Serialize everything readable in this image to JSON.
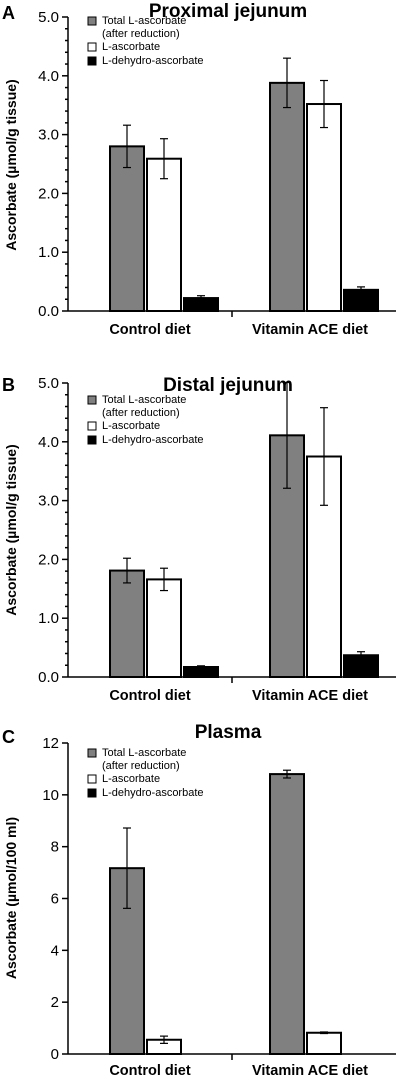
{
  "colors": {
    "total": "#808080",
    "l_ascorbate": "#ffffff",
    "l_dehydro": "#000000"
  },
  "chart_data": [
    {
      "type": "bar",
      "panel": "A",
      "title": "Proximal jejunum",
      "ylabel": "Ascorbate (µmol/g tissue)",
      "ylim": [
        0,
        5
      ],
      "yticks": [
        "0.0",
        "1.0",
        "2.0",
        "3.0",
        "4.0",
        "5.0"
      ],
      "minor_ticks": true,
      "categories": [
        "Control diet",
        "Vitamin ACE diet"
      ],
      "legend": [
        "Total L-ascorbate",
        "(after reduction)",
        "L-ascorbate",
        "L-dehydro-ascorbate"
      ],
      "legend_position": "top-left",
      "series": [
        {
          "name": "Total L-ascorbate (after reduction)",
          "color": "#808080",
          "values": [
            2.8,
            3.88
          ],
          "errors": [
            0.36,
            0.42
          ]
        },
        {
          "name": "L-ascorbate",
          "color": "#ffffff",
          "values": [
            2.59,
            3.52
          ],
          "errors": [
            0.34,
            0.4
          ]
        },
        {
          "name": "L-dehydro-ascorbate",
          "color": "#000000",
          "values": [
            0.22,
            0.36
          ],
          "errors": [
            0.04,
            0.05
          ]
        }
      ]
    },
    {
      "type": "bar",
      "panel": "B",
      "title": "Distal jejunum",
      "ylabel": "Ascorbate (µmol/g tissue)",
      "ylim": [
        0,
        5
      ],
      "yticks": [
        "0.0",
        "1.0",
        "2.0",
        "3.0",
        "4.0",
        "5.0"
      ],
      "minor_ticks": true,
      "categories": [
        "Control diet",
        "Vitamin ACE diet"
      ],
      "legend": [
        "Total L-ascorbate",
        "(after reduction)",
        "L-ascorbate",
        "L-dehydro-ascorbate"
      ],
      "legend_position": "top-left",
      "series": [
        {
          "name": "Total L-ascorbate (after reduction)",
          "color": "#808080",
          "values": [
            1.81,
            4.11
          ],
          "errors": [
            0.21,
            0.9
          ]
        },
        {
          "name": "L-ascorbate",
          "color": "#ffffff",
          "values": [
            1.66,
            3.75
          ],
          "errors": [
            0.19,
            0.83
          ]
        },
        {
          "name": "L-dehydro-ascorbate",
          "color": "#000000",
          "values": [
            0.17,
            0.37
          ],
          "errors": [
            0.02,
            0.06
          ]
        }
      ]
    },
    {
      "type": "bar",
      "panel": "C",
      "title": "Plasma",
      "ylabel": "Ascorbate (µmol/100 ml)",
      "ylim": [
        0,
        12
      ],
      "yticks": [
        "0",
        "2",
        "4",
        "6",
        "8",
        "10",
        "12"
      ],
      "minor_ticks": false,
      "categories": [
        "Control diet",
        "Vitamin ACE diet"
      ],
      "legend": [
        "Total L-ascorbate",
        "(after reduction)",
        "L-ascorbate",
        "L-dehydro-ascorbate"
      ],
      "legend_position": "top-left",
      "series": [
        {
          "name": "Total L-ascorbate (after reduction)",
          "color": "#808080",
          "values": [
            7.17,
            10.8
          ],
          "errors": [
            1.55,
            0.15
          ]
        },
        {
          "name": "L-ascorbate",
          "color": "#ffffff",
          "values": [
            0.55,
            0.82
          ],
          "errors": [
            0.14,
            0.03
          ]
        },
        {
          "name": "L-dehydro-ascorbate",
          "color": "#000000",
          "values": [
            0.0,
            0.0
          ],
          "errors": [
            0,
            0
          ]
        }
      ]
    }
  ]
}
